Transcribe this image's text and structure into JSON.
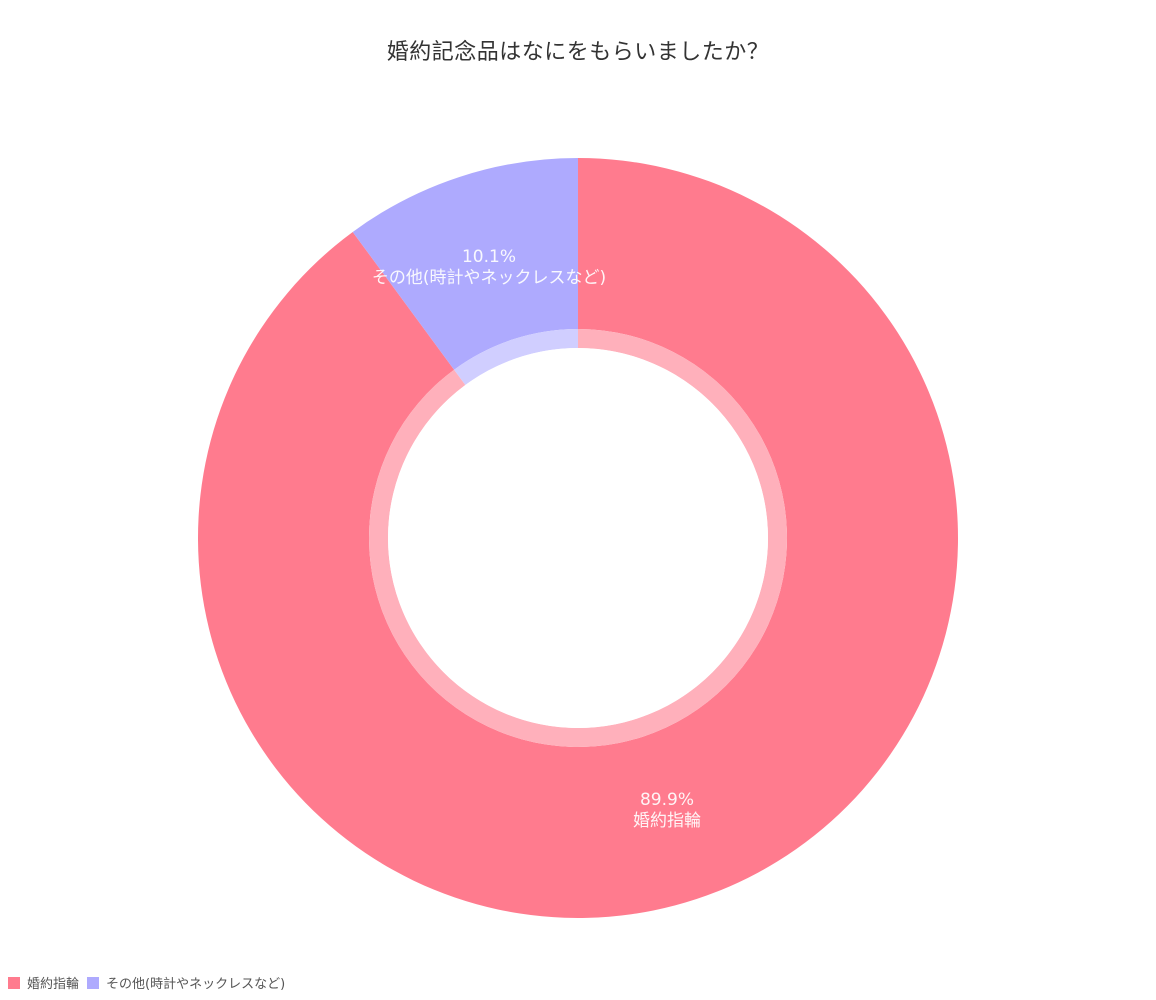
{
  "chart_data": {
    "type": "pie",
    "variant": "doughnut",
    "title": "婚約記念品はなにをもらいましたか？",
    "categories": [
      "婚約指輪",
      "その他(時計やネックレスなど)"
    ],
    "values": [
      89.9,
      10.1
    ],
    "unit": "%",
    "data_labels": [
      "89.9%\n婚約指輪",
      "10.1%\nその他(時計やネックレスなど)"
    ],
    "colors": [
      "#ff7b8e",
      "#aeaafe"
    ],
    "legend_position": "bottom-left",
    "start_angle": "top",
    "direction": "clockwise"
  },
  "title": "婚約記念品はなにをもらいましたか？",
  "slices": [
    {
      "label": "婚約指輪",
      "percent": "89.9%",
      "color": "#ff7b8e",
      "inner_color": "#ffb0bb"
    },
    {
      "label": "その他(時計やネックレスなど)",
      "percent": "10.1%",
      "color": "#aeaafe",
      "inner_color": "#d0ceff"
    }
  ],
  "legend": {
    "items": [
      {
        "label": "婚約指輪",
        "color": "#ff7b8e"
      },
      {
        "label": "その他(時計やネックレスなど)",
        "color": "#aeaafe"
      }
    ]
  }
}
